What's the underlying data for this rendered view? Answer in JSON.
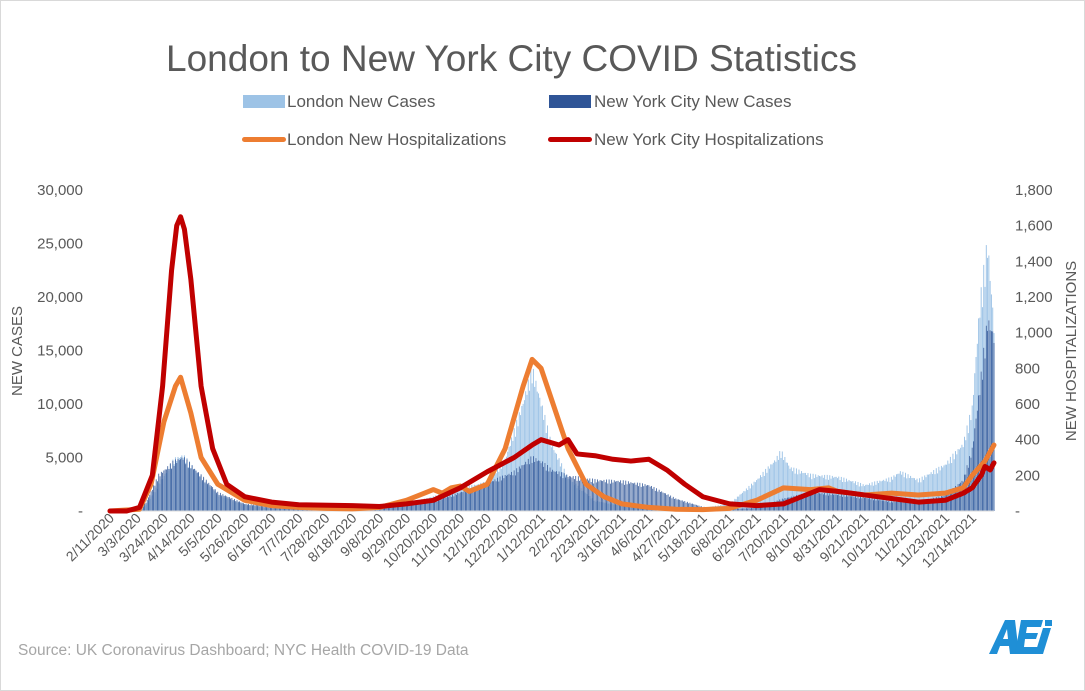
{
  "source": "Source: UK Coronavirus Dashboard; NYC Health COVID-19 Data",
  "colors": {
    "london_cases": "#9dc3e6",
    "nyc_cases": "#2f5597",
    "london_hosp": "#ed7d31",
    "nyc_hosp": "#c00000",
    "axis_text": "#595959",
    "logo": "#1f8fd6"
  },
  "chart_data": {
    "type": "bar+line",
    "title": "London to New York City COVID Statistics",
    "ylabel": "NEW CASES",
    "y2label": "NEW HOSPITALIZATIONS",
    "ylim": [
      0,
      30000
    ],
    "y2lim": [
      0,
      1800
    ],
    "y_ticks": [
      "-",
      "5,000",
      "10,000",
      "15,000",
      "20,000",
      "25,000",
      "30,000"
    ],
    "y2_ticks": [
      "-",
      "200",
      "400",
      "600",
      "800",
      "1,000",
      "1,200",
      "1,400",
      "1,600",
      "1,800"
    ],
    "grid": false,
    "legend_position": "top",
    "x_start": "2020-02-11",
    "x_end": "2021-12-31",
    "x_tick_labels": [
      "2/11/2020",
      "3/3/2020",
      "3/24/2020",
      "4/14/2020",
      "5/5/2020",
      "5/26/2020",
      "6/16/2020",
      "7/7/2020",
      "7/28/2020",
      "8/18/2020",
      "9/8/2020",
      "9/29/2020",
      "10/20/2020",
      "11/10/2020",
      "12/1/2020",
      "12/22/2020",
      "1/12/2021",
      "2/2/2021",
      "2/23/2021",
      "3/16/2021",
      "4/6/2021",
      "4/27/2021",
      "5/18/2021",
      "6/8/2021",
      "6/29/2021",
      "7/20/2021",
      "8/10/2021",
      "8/31/2021",
      "9/21/2021",
      "10/12/2021",
      "11/2/2021",
      "11/23/2021",
      "12/14/2021"
    ],
    "series": [
      {
        "name": "London New Cases",
        "type": "bar",
        "axis": "left",
        "points": [
          [
            "2020-02-11",
            0
          ],
          [
            "2020-03-03",
            0
          ],
          [
            "2020-03-10",
            600
          ],
          [
            "2020-03-20",
            2600
          ],
          [
            "2020-04-01",
            5000
          ],
          [
            "2020-04-08",
            5400
          ],
          [
            "2020-04-20",
            3600
          ],
          [
            "2020-05-05",
            1600
          ],
          [
            "2020-05-26",
            600
          ],
          [
            "2020-06-16",
            250
          ],
          [
            "2020-07-07",
            150
          ],
          [
            "2020-08-18",
            200
          ],
          [
            "2020-09-08",
            300
          ],
          [
            "2020-09-29",
            700
          ],
          [
            "2020-10-20",
            1400
          ],
          [
            "2020-11-10",
            2200
          ],
          [
            "2020-12-01",
            2800
          ],
          [
            "2020-12-15",
            5000
          ],
          [
            "2020-12-29",
            10500
          ],
          [
            "2021-01-05",
            13800
          ],
          [
            "2021-01-12",
            10500
          ],
          [
            "2021-01-20",
            6500
          ],
          [
            "2021-02-02",
            3200
          ],
          [
            "2021-02-23",
            1000
          ],
          [
            "2021-03-16",
            500
          ],
          [
            "2021-04-06",
            300
          ],
          [
            "2021-04-27",
            200
          ],
          [
            "2021-05-18",
            300
          ],
          [
            "2021-06-08",
            700
          ],
          [
            "2021-06-29",
            3000
          ],
          [
            "2021-07-14",
            5000
          ],
          [
            "2021-07-18",
            5800
          ],
          [
            "2021-07-25",
            4200
          ],
          [
            "2021-08-10",
            3500
          ],
          [
            "2021-08-31",
            3300
          ],
          [
            "2021-09-14",
            2800
          ],
          [
            "2021-09-21",
            2500
          ],
          [
            "2021-10-12",
            3200
          ],
          [
            "2021-10-19",
            3800
          ],
          [
            "2021-11-02",
            3000
          ],
          [
            "2021-11-23",
            4500
          ],
          [
            "2021-12-07",
            6500
          ],
          [
            "2021-12-14",
            10000
          ],
          [
            "2021-12-20",
            20000
          ],
          [
            "2021-12-26",
            26000
          ],
          [
            "2021-12-31",
            18000
          ]
        ]
      },
      {
        "name": "New York City New Cases",
        "type": "bar",
        "axis": "left",
        "points": [
          [
            "2020-02-11",
            0
          ],
          [
            "2020-03-03",
            0
          ],
          [
            "2020-03-10",
            800
          ],
          [
            "2020-03-20",
            3500
          ],
          [
            "2020-04-01",
            4800
          ],
          [
            "2020-04-08",
            5200
          ],
          [
            "2020-04-20",
            3700
          ],
          [
            "2020-05-05",
            1800
          ],
          [
            "2020-05-26",
            700
          ],
          [
            "2020-06-16",
            400
          ],
          [
            "2020-07-07",
            300
          ],
          [
            "2020-08-18",
            250
          ],
          [
            "2020-09-08",
            300
          ],
          [
            "2020-09-29",
            500
          ],
          [
            "2020-10-20",
            900
          ],
          [
            "2020-11-10",
            1800
          ],
          [
            "2020-12-01",
            2700
          ],
          [
            "2020-12-22",
            3800
          ],
          [
            "2021-01-05",
            5200
          ],
          [
            "2021-01-12",
            4800
          ],
          [
            "2021-01-20",
            4000
          ],
          [
            "2021-02-02",
            3400
          ],
          [
            "2021-02-23",
            3000
          ],
          [
            "2021-03-16",
            2900
          ],
          [
            "2021-04-06",
            2500
          ],
          [
            "2021-04-27",
            1200
          ],
          [
            "2021-05-18",
            400
          ],
          [
            "2021-06-08",
            200
          ],
          [
            "2021-06-29",
            300
          ],
          [
            "2021-07-20",
            1200
          ],
          [
            "2021-08-10",
            1800
          ],
          [
            "2021-08-31",
            1600
          ],
          [
            "2021-09-21",
            1300
          ],
          [
            "2021-10-12",
            900
          ],
          [
            "2021-11-02",
            900
          ],
          [
            "2021-11-23",
            1500
          ],
          [
            "2021-12-07",
            3000
          ],
          [
            "2021-12-14",
            6000
          ],
          [
            "2021-12-20",
            12000
          ],
          [
            "2021-12-26",
            18500
          ],
          [
            "2021-12-31",
            17000
          ]
        ]
      },
      {
        "name": "London New Hospitalizations",
        "type": "line",
        "axis": "right",
        "points": [
          [
            "2020-02-11",
            0
          ],
          [
            "2020-03-05",
            10
          ],
          [
            "2020-03-14",
            150
          ],
          [
            "2020-03-24",
            500
          ],
          [
            "2020-04-02",
            700
          ],
          [
            "2020-04-06",
            750
          ],
          [
            "2020-04-14",
            550
          ],
          [
            "2020-04-22",
            300
          ],
          [
            "2020-05-05",
            150
          ],
          [
            "2020-05-26",
            60
          ],
          [
            "2020-06-16",
            30
          ],
          [
            "2020-07-07",
            20
          ],
          [
            "2020-07-28",
            15
          ],
          [
            "2020-08-18",
            12
          ],
          [
            "2020-09-08",
            20
          ],
          [
            "2020-09-29",
            60
          ],
          [
            "2020-10-13",
            100
          ],
          [
            "2020-10-20",
            120
          ],
          [
            "2020-10-27",
            100
          ],
          [
            "2020-11-03",
            130
          ],
          [
            "2020-11-10",
            140
          ],
          [
            "2020-11-17",
            110
          ],
          [
            "2020-12-01",
            150
          ],
          [
            "2020-12-15",
            350
          ],
          [
            "2020-12-29",
            700
          ],
          [
            "2021-01-05",
            850
          ],
          [
            "2021-01-12",
            800
          ],
          [
            "2021-01-19",
            650
          ],
          [
            "2021-02-02",
            350
          ],
          [
            "2021-02-16",
            150
          ],
          [
            "2021-03-02",
            80
          ],
          [
            "2021-03-16",
            40
          ],
          [
            "2021-04-06",
            20
          ],
          [
            "2021-04-27",
            10
          ],
          [
            "2021-05-18",
            8
          ],
          [
            "2021-06-08",
            15
          ],
          [
            "2021-06-29",
            60
          ],
          [
            "2021-07-20",
            130
          ],
          [
            "2021-08-10",
            120
          ],
          [
            "2021-08-24",
            130
          ],
          [
            "2021-08-31",
            110
          ],
          [
            "2021-09-21",
            90
          ],
          [
            "2021-10-12",
            100
          ],
          [
            "2021-11-02",
            90
          ],
          [
            "2021-11-23",
            100
          ],
          [
            "2021-12-07",
            130
          ],
          [
            "2021-12-14",
            200
          ],
          [
            "2021-12-24",
            280
          ],
          [
            "2021-12-31",
            370
          ]
        ]
      },
      {
        "name": "New York City Hospitalizations",
        "type": "line",
        "axis": "right",
        "points": [
          [
            "2020-02-11",
            0
          ],
          [
            "2020-02-24",
            0
          ],
          [
            "2020-03-05",
            20
          ],
          [
            "2020-03-15",
            200
          ],
          [
            "2020-03-23",
            700
          ],
          [
            "2020-03-30",
            1350
          ],
          [
            "2020-04-03",
            1600
          ],
          [
            "2020-04-06",
            1650
          ],
          [
            "2020-04-09",
            1580
          ],
          [
            "2020-04-14",
            1300
          ],
          [
            "2020-04-22",
            700
          ],
          [
            "2020-05-01",
            350
          ],
          [
            "2020-05-12",
            150
          ],
          [
            "2020-05-26",
            80
          ],
          [
            "2020-06-16",
            50
          ],
          [
            "2020-07-07",
            35
          ],
          [
            "2020-08-18",
            30
          ],
          [
            "2020-09-08",
            25
          ],
          [
            "2020-09-29",
            40
          ],
          [
            "2020-10-20",
            60
          ],
          [
            "2020-11-10",
            130
          ],
          [
            "2020-12-01",
            220
          ],
          [
            "2020-12-22",
            300
          ],
          [
            "2021-01-05",
            370
          ],
          [
            "2021-01-12",
            400
          ],
          [
            "2021-01-26",
            370
          ],
          [
            "2021-02-02",
            400
          ],
          [
            "2021-02-09",
            320
          ],
          [
            "2021-02-23",
            310
          ],
          [
            "2021-03-09",
            290
          ],
          [
            "2021-03-23",
            280
          ],
          [
            "2021-04-06",
            290
          ],
          [
            "2021-04-20",
            230
          ],
          [
            "2021-05-04",
            150
          ],
          [
            "2021-05-18",
            80
          ],
          [
            "2021-06-08",
            40
          ],
          [
            "2021-06-29",
            30
          ],
          [
            "2021-07-20",
            40
          ],
          [
            "2021-08-03",
            80
          ],
          [
            "2021-08-17",
            120
          ],
          [
            "2021-08-31",
            110
          ],
          [
            "2021-09-21",
            90
          ],
          [
            "2021-10-12",
            70
          ],
          [
            "2021-11-02",
            50
          ],
          [
            "2021-11-23",
            60
          ],
          [
            "2021-12-07",
            100
          ],
          [
            "2021-12-14",
            130
          ],
          [
            "2021-12-21",
            200
          ],
          [
            "2021-12-24",
            250
          ],
          [
            "2021-12-28",
            230
          ],
          [
            "2021-12-31",
            270
          ]
        ]
      }
    ]
  }
}
